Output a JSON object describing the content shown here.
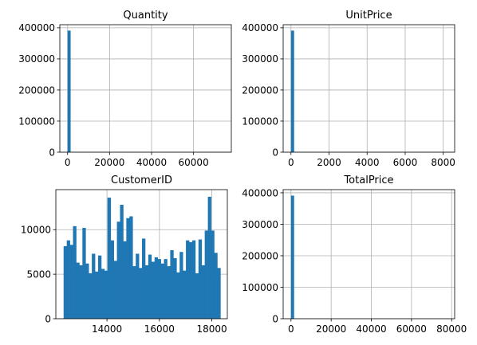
{
  "chart_data": [
    {
      "type": "histogram",
      "title": "Quantity",
      "xlabel": "",
      "ylabel": "",
      "xlim": [
        -3700,
        78000
      ],
      "ylim": [
        0,
        410000
      ],
      "xticks": [
        0,
        20000,
        40000,
        60000
      ],
      "xtick_labels": [
        "0",
        "20000",
        "40000",
        "60000"
      ],
      "yticks": [
        0,
        100000,
        200000,
        300000,
        400000
      ],
      "ytick_labels": [
        "0",
        "100000",
        "200000",
        "300000",
        "400000"
      ],
      "grid": true,
      "color": "#1f77b4",
      "bins": [
        {
          "x0": 0,
          "x1": 1450,
          "count": 391000
        }
      ]
    },
    {
      "type": "histogram",
      "title": "UnitPrice",
      "xlabel": "",
      "ylabel": "",
      "xlim": [
        -410,
        8600
      ],
      "ylim": [
        0,
        410000
      ],
      "xticks": [
        0,
        2000,
        4000,
        6000,
        8000
      ],
      "xtick_labels": [
        "0",
        "2000",
        "4000",
        "6000",
        "8000"
      ],
      "yticks": [
        0,
        100000,
        200000,
        300000,
        400000
      ],
      "ytick_labels": [
        "0",
        "100000",
        "200000",
        "300000",
        "400000"
      ],
      "grid": true,
      "color": "#1f77b4",
      "bins": [
        {
          "x0": 0,
          "x1": 165,
          "count": 391000
        }
      ]
    },
    {
      "type": "histogram",
      "title": "CustomerID",
      "xlabel": "",
      "ylabel": "",
      "xlim": [
        12050,
        18590
      ],
      "ylim": [
        0,
        14500
      ],
      "xticks": [
        14000,
        16000,
        18000
      ],
      "xtick_labels": [
        "14000",
        "16000",
        "18000"
      ],
      "yticks": [
        0,
        5000,
        10000
      ],
      "ytick_labels": [
        "0",
        "5000",
        "10000"
      ],
      "grid": true,
      "color": "#1f77b4",
      "bin_start": 12346,
      "bin_width": 119.6,
      "counts": [
        8150,
        8800,
        8300,
        10400,
        6300,
        6000,
        10200,
        6200,
        5100,
        7300,
        5300,
        7100,
        5600,
        5400,
        13600,
        8800,
        6500,
        10900,
        12800,
        8700,
        11300,
        11500,
        5900,
        7300,
        5700,
        9000,
        6000,
        7200,
        6400,
        6900,
        6700,
        6200,
        6700,
        5900,
        7700,
        6800,
        5200,
        7500,
        5400,
        8800,
        8600,
        8800,
        5100,
        8900,
        6000,
        9900,
        13700,
        9900,
        7400,
        5700
      ]
    },
    {
      "type": "histogram",
      "title": "TotalPrice",
      "xlabel": "",
      "ylabel": "",
      "xlim": [
        -3900,
        81500
      ],
      "ylim": [
        0,
        410000
      ],
      "xticks": [
        0,
        20000,
        40000,
        60000,
        80000
      ],
      "xtick_labels": [
        "0",
        "20000",
        "40000",
        "60000",
        "80000"
      ],
      "yticks": [
        0,
        100000,
        200000,
        300000,
        400000
      ],
      "ytick_labels": [
        "0",
        "100000",
        "200000",
        "300000",
        "400000"
      ],
      "grid": true,
      "color": "#1f77b4",
      "bins": [
        {
          "x0": 0,
          "x1": 1550,
          "count": 391000
        }
      ]
    }
  ]
}
